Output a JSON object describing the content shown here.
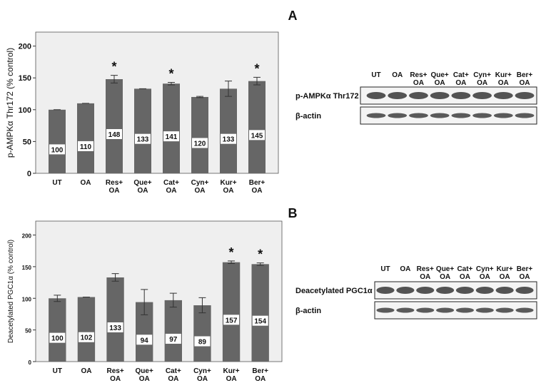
{
  "chart_data": [
    {
      "type": "bar",
      "ylabel": "p-AMPKα Thr172 (% control)",
      "categories": [
        "UT",
        "OA",
        "Res+ OA",
        "Que+ OA",
        "Cat+ OA",
        "Cyn+ OA",
        "Kur+ OA",
        "Ber+ OA"
      ],
      "values": [
        100,
        110,
        148,
        133,
        141,
        120,
        133,
        145
      ],
      "errors": [
        0,
        0,
        6,
        0,
        2,
        1,
        12,
        6
      ],
      "markers": [
        null,
        null,
        "*",
        null,
        "*",
        null,
        null,
        "*"
      ],
      "color": "#666666",
      "ylim": [
        0,
        222
      ],
      "yticks": [
        0,
        50,
        100,
        150,
        200
      ]
    },
    {
      "type": "bar",
      "ylabel": "Deacetylated PGC1α (% control)",
      "categories": [
        "UT",
        "OA",
        "Res+ OA",
        "Que+ OA",
        "Cat+ OA",
        "Cyn+ OA",
        "Kur+ OA",
        "Ber+ OA"
      ],
      "values": [
        100,
        102,
        133,
        94,
        97,
        89,
        157,
        154
      ],
      "errors": [
        5,
        0,
        6,
        20,
        11,
        12,
        2,
        2
      ],
      "markers": [
        null,
        null,
        null,
        null,
        null,
        null,
        "*",
        "*"
      ],
      "color": "#666666",
      "ylim": [
        0,
        222
      ],
      "yticks": [
        0,
        50,
        100,
        150,
        200
      ]
    }
  ],
  "blots": [
    {
      "panel": "A",
      "lanes": [
        "UT",
        "OA",
        "Res+ OA",
        "Que+ OA",
        "Cat+ OA",
        "Cyn+ OA",
        "Kur+ OA",
        "Ber+ OA"
      ],
      "rows": [
        "p-AMPKα Thr172",
        "β-actin"
      ]
    },
    {
      "panel": "B",
      "lanes": [
        "UT",
        "OA",
        "Res+ OA",
        "Que+ OA",
        "Cat+ OA",
        "Cyn+ OA",
        "Kur+ OA",
        "Ber+ OA"
      ],
      "rows": [
        "Deacetylated PGC1α",
        "β-actin"
      ]
    }
  ]
}
